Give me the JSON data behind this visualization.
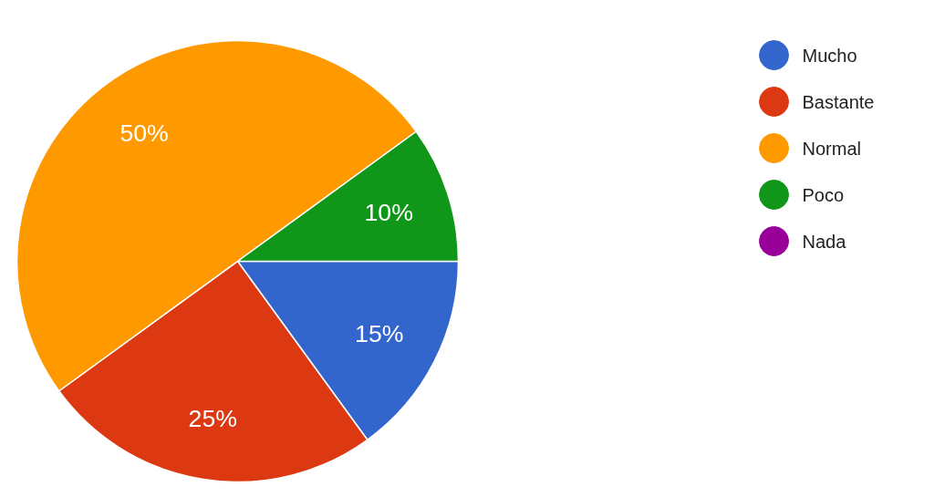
{
  "chart_data": {
    "type": "pie",
    "categories": [
      "Mucho",
      "Bastante",
      "Normal",
      "Poco",
      "Nada"
    ],
    "values": [
      15,
      25,
      50,
      10,
      0
    ],
    "colors": [
      "#3366cc",
      "#dc3912",
      "#ff9900",
      "#109618",
      "#990099"
    ],
    "value_labels": [
      "15%",
      "25%",
      "50%",
      "10%",
      null
    ],
    "legend": "top right"
  }
}
